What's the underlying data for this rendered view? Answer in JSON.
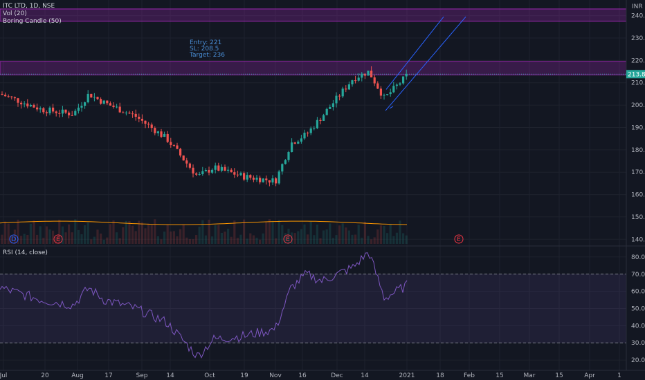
{
  "header": {
    "symbol_title": "ITC LTD, 1D, NSE",
    "currency": "INR"
  },
  "indicators": {
    "vol_label": "Vol (20)",
    "boring_label": "Boring Candle (50)",
    "rsi_label": "RSI (14, close)"
  },
  "annotation": {
    "entry": "Entry: 221",
    "sl": "SL: 208.5",
    "target": "Target: 236"
  },
  "price_badge": "213.85",
  "event_markers": [
    {
      "letter": "D",
      "color": "#2962ff"
    },
    {
      "letter": "E",
      "color": "#f23645"
    },
    {
      "letter": "E",
      "color": "#f23645"
    },
    {
      "letter": "E",
      "color": "#f23645"
    }
  ],
  "colors": {
    "background": "#131722",
    "up": "#26a69a",
    "down": "#ef5350",
    "zone": "#9c27b0",
    "rsi_line": "#7e57c2",
    "channel": "#2962ff"
  },
  "chart_data": [
    {
      "type": "candlestick",
      "title": "ITC LTD, 1D, NSE",
      "ylim": [
        137,
        247
      ],
      "yticks": [
        140,
        150,
        160,
        170,
        180,
        190,
        200,
        210,
        220,
        230,
        240
      ],
      "xticks": [
        "Jul",
        "20",
        "Aug",
        "17",
        "Sep",
        "14",
        "Oct",
        "19",
        "Nov",
        "16",
        "Dec",
        "14",
        "2021",
        "18",
        "Feb",
        "15",
        "Mar",
        "15",
        "Apr",
        "1"
      ],
      "last_price": 213.85,
      "zones": [
        [
          237.5,
          243
        ],
        [
          213.5,
          219.5
        ]
      ],
      "close_approx": [
        {
          "x": "Jul 1",
          "y": 205
        },
        {
          "x": "Jul 20",
          "y": 198
        },
        {
          "x": "Aug 3",
          "y": 196
        },
        {
          "x": "Aug 10",
          "y": 205
        },
        {
          "x": "Aug 17",
          "y": 201
        },
        {
          "x": "Aug 31",
          "y": 195
        },
        {
          "x": "Sep 14",
          "y": 185
        },
        {
          "x": "Sep 28",
          "y": 168
        },
        {
          "x": "Oct 5",
          "y": 172
        },
        {
          "x": "Oct 19",
          "y": 168
        },
        {
          "x": "Nov 2",
          "y": 166
        },
        {
          "x": "Nov 9",
          "y": 183
        },
        {
          "x": "Nov 16",
          "y": 187
        },
        {
          "x": "Nov 23",
          "y": 195
        },
        {
          "x": "Dec 7",
          "y": 212
        },
        {
          "x": "Dec 14",
          "y": 215
        },
        {
          "x": "Dec 21",
          "y": 203
        },
        {
          "x": "Jan 1",
          "y": 214
        }
      ]
    },
    {
      "type": "line",
      "title": "RSI (14, close)",
      "ylim": [
        14,
        86
      ],
      "yticks": [
        20,
        30,
        40,
        50,
        60,
        70,
        80
      ],
      "bands": [
        30,
        70
      ],
      "points": [
        {
          "x": "Jul 1",
          "y": 62
        },
        {
          "x": "Jul 20",
          "y": 55
        },
        {
          "x": "Aug 3",
          "y": 52
        },
        {
          "x": "Aug 10",
          "y": 62
        },
        {
          "x": "Aug 17",
          "y": 55
        },
        {
          "x": "Aug 31",
          "y": 50
        },
        {
          "x": "Sep 14",
          "y": 42
        },
        {
          "x": "Sep 28",
          "y": 22
        },
        {
          "x": "Oct 5",
          "y": 32
        },
        {
          "x": "Oct 19",
          "y": 34
        },
        {
          "x": "Nov 2",
          "y": 38
        },
        {
          "x": "Nov 9",
          "y": 62
        },
        {
          "x": "Nov 16",
          "y": 70
        },
        {
          "x": "Nov 23",
          "y": 66
        },
        {
          "x": "Dec 7",
          "y": 74
        },
        {
          "x": "Dec 14",
          "y": 83
        },
        {
          "x": "Dec 21",
          "y": 56
        },
        {
          "x": "Jan 1",
          "y": 64
        }
      ]
    }
  ]
}
